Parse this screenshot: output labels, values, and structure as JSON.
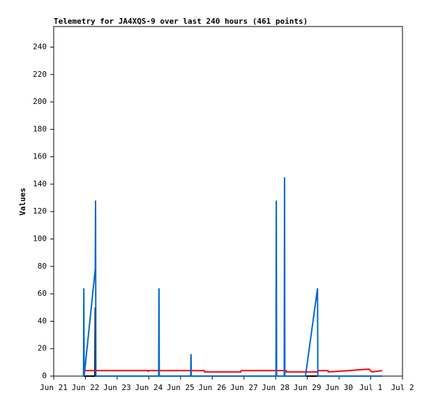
{
  "chart_data": {
    "type": "line",
    "title": "Telemetry for JA4XQS-9 over last 240 hours (461 points)",
    "y_label": "Values",
    "xlim": [
      0,
      11
    ],
    "xticks": [
      {
        "value": 0,
        "label": "Jun 21"
      },
      {
        "value": 1,
        "label": "Jun 22"
      },
      {
        "value": 2,
        "label": "Jun 23"
      },
      {
        "value": 3,
        "label": "Jun 24"
      },
      {
        "value": 4,
        "label": "Jun 25"
      },
      {
        "value": 5,
        "label": "Jun 26"
      },
      {
        "value": 6,
        "label": "Jun 27"
      },
      {
        "value": 7,
        "label": "Jun 28"
      },
      {
        "value": 8,
        "label": "Jun 29"
      },
      {
        "value": 9,
        "label": "Jun 30"
      },
      {
        "value": 10,
        "label": "Jul 1"
      },
      {
        "value": 11,
        "label": "Jul 2"
      }
    ],
    "ylim": [
      0,
      255
    ],
    "yticks": [
      0,
      20,
      40,
      60,
      80,
      100,
      120,
      140,
      160,
      180,
      200,
      220,
      240
    ],
    "series": [
      {
        "color": "#000000",
        "x": [
          0.94,
          1.3,
          1.31,
          1.32,
          10.36
        ],
        "values": [
          0,
          0,
          50,
          0,
          0
        ]
      },
      {
        "color": "#ff0000",
        "x": [
          0.95,
          2.97,
          2.98,
          3.0,
          4.75,
          4.76,
          5.9,
          5.91,
          7.33,
          7.34,
          8.32,
          8.33,
          8.65,
          8.66,
          9.92,
          9.95,
          10.03,
          10.36
        ],
        "values": [
          4,
          4,
          3.5,
          4,
          4,
          3,
          3,
          4,
          4,
          3,
          3,
          4,
          4,
          3,
          5,
          5,
          3,
          4
        ]
      },
      {
        "color": "#0066cc",
        "x": [
          0.94,
          0.95,
          0.96,
          1.31,
          1.32,
          1.33,
          3.31,
          3.32,
          3.33,
          4.32,
          4.33,
          4.34,
          7.01,
          7.02,
          7.03,
          7.27,
          7.28,
          7.29,
          7.94,
          8.32,
          8.33,
          10.36
        ],
        "values": [
          0,
          64,
          0,
          78,
          128,
          0,
          0,
          64,
          0,
          0,
          16,
          0,
          0,
          128,
          0,
          0,
          145,
          0,
          0,
          64,
          0,
          0
        ]
      }
    ]
  }
}
